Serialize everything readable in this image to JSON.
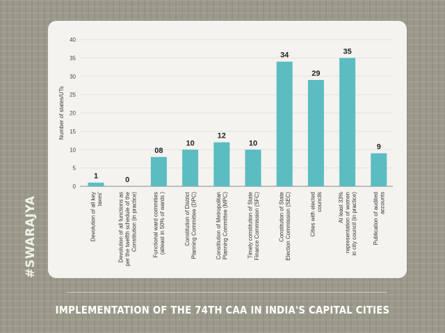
{
  "watermark": "#SWARAJYA",
  "title": "IMPLEMENTATION OF THE 74TH CAA IN INDIA'S CAPITAL CITIES",
  "colors": {
    "bar": "#5bbcc2",
    "background": "#9b9a8a",
    "card": "#f4f3ef"
  },
  "chart_data": {
    "type": "bar",
    "title": "",
    "xlabel": "",
    "ylabel": "Number of states/UTs",
    "ylim": [
      0,
      40
    ],
    "yticks": [
      0,
      5,
      10,
      15,
      20,
      25,
      30,
      35,
      40
    ],
    "grid": true,
    "categories": [
      [
        "Devolution of all key",
        "taxes'"
      ],
      [
        "Devolution of all functions as",
        "per the twelfth schedule of the",
        "Constitution (in practice)"
      ],
      [
        "Functional ward commities",
        "(atleast in 50% of wards )"
      ],
      [
        "Constitution of District",
        "Planning Committee (DPC)"
      ],
      [
        "Constitution of Metropolitan",
        "Planning Committee (MPC)"
      ],
      [
        "Timely constitution of State",
        "Finance Commission (SFC)"
      ],
      [
        "Constitution of State",
        "Election Commission (SEC)"
      ],
      [
        "Cities with elected",
        "councils"
      ],
      [
        "At least 33%",
        "representation of women",
        "in city council (in practice)"
      ],
      [
        "Publication of audited",
        "accounts"
      ]
    ],
    "values": [
      1,
      0,
      8,
      10,
      12,
      10,
      34,
      29,
      35,
      9
    ],
    "data_labels": [
      "1",
      "0",
      "08",
      "10",
      "12",
      "10",
      "34",
      "29",
      "35",
      "9"
    ]
  }
}
